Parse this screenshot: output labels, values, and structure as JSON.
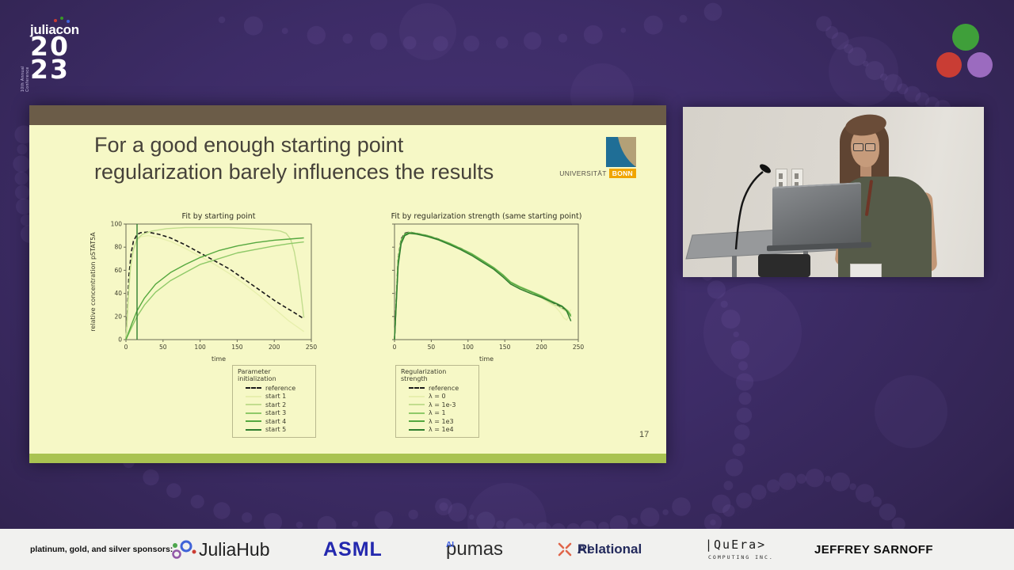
{
  "event": {
    "logo_word": "juliacon",
    "year_top": "20",
    "year_bottom": "23",
    "side_text": "10th Annual Conference"
  },
  "slide": {
    "title_line1": "For a good enough starting point",
    "title_line2": "regularization barely influences the results",
    "page_number": "17",
    "university": {
      "name": "UNIVERSITÄT",
      "city": "BONN"
    }
  },
  "chart_data": [
    {
      "type": "line",
      "title": "Fit by starting point",
      "xlabel": "time",
      "ylabel": "relative concentration pSTAT5A",
      "xlim": [
        0,
        250
      ],
      "ylim": [
        0,
        100
      ],
      "xticks": [
        0,
        50,
        100,
        150,
        200,
        250
      ],
      "yticks": [
        0,
        20,
        40,
        60,
        80,
        100
      ],
      "show_ytick_labels": true,
      "legend_title": "Parameter initialization",
      "legend_position": "below",
      "grid": false,
      "series": [
        {
          "name": "reference",
          "color": "#1a1a1a",
          "dash": true,
          "width": 1.6,
          "points": [
            [
              0,
              0
            ],
            [
              2,
              25
            ],
            [
              4,
              55
            ],
            [
              7,
              75
            ],
            [
              10,
              85
            ],
            [
              15,
              91
            ],
            [
              20,
              92.5
            ],
            [
              30,
              93
            ],
            [
              45,
              91
            ],
            [
              60,
              88
            ],
            [
              80,
              82
            ],
            [
              100,
              75
            ],
            [
              120,
              68
            ],
            [
              140,
              61
            ],
            [
              160,
              52
            ],
            [
              180,
              43
            ],
            [
              200,
              34
            ],
            [
              215,
              28
            ],
            [
              228,
              23
            ],
            [
              240,
              18
            ]
          ]
        },
        {
          "name": "start 1",
          "color": "#e7efad",
          "points": [
            [
              0,
              0
            ],
            [
              2,
              20
            ],
            [
              5,
              55
            ],
            [
              9,
              75
            ],
            [
              14,
              85
            ],
            [
              20,
              89
            ],
            [
              30,
              90
            ],
            [
              45,
              88
            ],
            [
              60,
              85
            ],
            [
              80,
              79
            ],
            [
              100,
              72
            ],
            [
              120,
              65
            ],
            [
              140,
              57
            ],
            [
              160,
              48
            ],
            [
              180,
              38
            ],
            [
              200,
              27
            ],
            [
              220,
              16
            ],
            [
              240,
              7
            ]
          ]
        },
        {
          "name": "start 2",
          "color": "#c2dd8e",
          "points": [
            [
              0,
              0
            ],
            [
              3,
              35
            ],
            [
              6,
              62
            ],
            [
              10,
              78
            ],
            [
              15,
              87
            ],
            [
              22,
              91
            ],
            [
              35,
              94
            ],
            [
              55,
              96
            ],
            [
              80,
              97
            ],
            [
              110,
              97
            ],
            [
              140,
              97
            ],
            [
              170,
              96
            ],
            [
              195,
              95
            ],
            [
              208,
              94
            ],
            [
              216,
              92
            ],
            [
              222,
              87
            ],
            [
              227,
              76
            ],
            [
              232,
              58
            ],
            [
              236,
              40
            ],
            [
              240,
              19
            ]
          ]
        },
        {
          "name": "start 3",
          "color": "#8fc968",
          "points": [
            [
              0,
              0
            ],
            [
              8,
              11
            ],
            [
              15,
              20
            ],
            [
              25,
              30
            ],
            [
              40,
              41
            ],
            [
              60,
              51
            ],
            [
              80,
              58
            ],
            [
              100,
              65
            ],
            [
              125,
              70
            ],
            [
              150,
              75
            ],
            [
              175,
              78
            ],
            [
              200,
              81
            ],
            [
              220,
              83
            ],
            [
              240,
              84.5
            ]
          ]
        },
        {
          "name": "start 4",
          "color": "#55a83f",
          "points": [
            [
              0,
              0
            ],
            [
              8,
              14
            ],
            [
              15,
              25
            ],
            [
              25,
              36
            ],
            [
              40,
              48
            ],
            [
              60,
              58
            ],
            [
              80,
              65
            ],
            [
              100,
              71
            ],
            [
              125,
              77
            ],
            [
              150,
              81
            ],
            [
              175,
              84
            ],
            [
              200,
              86
            ],
            [
              220,
              87
            ],
            [
              240,
              88
            ]
          ]
        },
        {
          "name": "start 5",
          "color": "#2f7d2f",
          "points": [
            [
              15,
              0
            ],
            [
              15,
              100
            ]
          ]
        }
      ]
    },
    {
      "type": "line",
      "title": "Fit by regularization strength (same starting point)",
      "xlabel": "time",
      "ylabel": "",
      "xlim": [
        0,
        250
      ],
      "ylim": [
        0,
        100
      ],
      "xticks": [
        0,
        50,
        100,
        150,
        200,
        250
      ],
      "yticks": [
        0,
        20,
        40,
        60,
        80,
        100
      ],
      "show_ytick_labels": false,
      "legend_title": "Regularization strength",
      "legend_position": "below",
      "grid": false,
      "series": [
        {
          "name": "reference",
          "color": "#1a1a1a",
          "dash": true,
          "width": 1.6,
          "points": [
            [
              0,
              0
            ],
            [
              2,
              30
            ],
            [
              5,
              70
            ],
            [
              9,
              87
            ],
            [
              14,
              92
            ],
            [
              20,
              93
            ],
            [
              30,
              92
            ],
            [
              45,
              90
            ],
            [
              60,
              87
            ],
            [
              75,
              83
            ],
            [
              90,
              79
            ],
            [
              105,
              74
            ],
            [
              120,
              68
            ],
            [
              135,
              62
            ],
            [
              148,
              55
            ],
            [
              158,
              49
            ],
            [
              170,
              45
            ],
            [
              185,
              41
            ],
            [
              200,
              37
            ],
            [
              212,
              33
            ],
            [
              222,
              30
            ],
            [
              230,
              27
            ],
            [
              236,
              24
            ],
            [
              240,
              21
            ]
          ]
        },
        {
          "name": "λ = 0",
          "color": "#e7efad",
          "points": [
            [
              0,
              0
            ],
            [
              2,
              28
            ],
            [
              5,
              68
            ],
            [
              9,
              85
            ],
            [
              14,
              90
            ],
            [
              20,
              91.5
            ],
            [
              30,
              91
            ],
            [
              45,
              89
            ],
            [
              60,
              86
            ],
            [
              75,
              82
            ],
            [
              90,
              78
            ],
            [
              105,
              73
            ],
            [
              120,
              67
            ],
            [
              135,
              61
            ],
            [
              148,
              54
            ],
            [
              158,
              48
            ],
            [
              170,
              44
            ],
            [
              185,
              40
            ],
            [
              200,
              36
            ],
            [
              210,
              32
            ],
            [
              218,
              29
            ],
            [
              225,
              24
            ],
            [
              230,
              19
            ],
            [
              234,
              17
            ],
            [
              237,
              20
            ],
            [
              239,
              25
            ],
            [
              240,
              26
            ]
          ]
        },
        {
          "name": "λ = 1e-3",
          "color": "#c2dd8e",
          "points": [
            [
              0,
              0
            ],
            [
              2,
              29
            ],
            [
              5,
              69
            ],
            [
              9,
              86
            ],
            [
              14,
              91
            ],
            [
              20,
              92.5
            ],
            [
              30,
              91.5
            ],
            [
              45,
              89.5
            ],
            [
              60,
              86.5
            ],
            [
              75,
              82.5
            ],
            [
              90,
              78.5
            ],
            [
              105,
              73.5
            ],
            [
              120,
              67.5
            ],
            [
              135,
              61.5
            ],
            [
              148,
              54.5
            ],
            [
              158,
              48.5
            ],
            [
              170,
              44.5
            ],
            [
              185,
              40.5
            ],
            [
              200,
              36.5
            ],
            [
              212,
              32
            ],
            [
              222,
              29
            ],
            [
              230,
              26
            ],
            [
              236,
              23.5
            ],
            [
              240,
              22
            ]
          ]
        },
        {
          "name": "λ = 1",
          "color": "#8fc968",
          "points": [
            [
              0,
              0
            ],
            [
              2,
              29
            ],
            [
              5,
              69
            ],
            [
              9,
              86
            ],
            [
              14,
              91.5
            ],
            [
              20,
              92.8
            ],
            [
              30,
              92
            ],
            [
              45,
              90
            ],
            [
              60,
              87
            ],
            [
              75,
              83.5
            ],
            [
              90,
              79
            ],
            [
              105,
              74.5
            ],
            [
              120,
              68.5
            ],
            [
              135,
              62.5
            ],
            [
              148,
              56
            ],
            [
              158,
              50
            ],
            [
              170,
              46
            ],
            [
              185,
              42
            ],
            [
              200,
              38
            ],
            [
              212,
              34
            ],
            [
              222,
              31
            ],
            [
              230,
              28
            ],
            [
              236,
              25
            ],
            [
              240,
              21
            ]
          ]
        },
        {
          "name": "λ = 1e3",
          "color": "#55a83f",
          "points": [
            [
              0,
              0
            ],
            [
              2,
              28
            ],
            [
              5,
              67
            ],
            [
              9,
              85
            ],
            [
              14,
              91
            ],
            [
              20,
              92.3
            ],
            [
              30,
              91.8
            ],
            [
              45,
              89.8
            ],
            [
              60,
              86.8
            ],
            [
              75,
              83
            ],
            [
              90,
              78.8
            ],
            [
              105,
              74
            ],
            [
              120,
              68
            ],
            [
              135,
              62
            ],
            [
              148,
              55.5
            ],
            [
              158,
              49.5
            ],
            [
              170,
              45.5
            ],
            [
              185,
              41.5
            ],
            [
              200,
              37.5
            ],
            [
              212,
              33.5
            ],
            [
              222,
              30.5
            ],
            [
              230,
              27.5
            ],
            [
              236,
              24
            ],
            [
              240,
              20
            ]
          ]
        },
        {
          "name": "λ = 1e4",
          "color": "#2f7d2f",
          "points": [
            [
              0,
              0
            ],
            [
              2,
              26
            ],
            [
              5,
              64
            ],
            [
              9,
              83
            ],
            [
              14,
              90
            ],
            [
              20,
              92
            ],
            [
              30,
              91.3
            ],
            [
              45,
              89.2
            ],
            [
              60,
              86.2
            ],
            [
              75,
              82.2
            ],
            [
              90,
              77.8
            ],
            [
              105,
              72.8
            ],
            [
              120,
              66.8
            ],
            [
              135,
              60.8
            ],
            [
              148,
              54
            ],
            [
              158,
              48
            ],
            [
              170,
              44
            ],
            [
              185,
              40
            ],
            [
              200,
              36.5
            ],
            [
              212,
              33
            ],
            [
              220,
              31
            ],
            [
              228,
              29
            ],
            [
              234,
              25
            ],
            [
              240,
              16
            ]
          ]
        }
      ]
    }
  ],
  "sponsors": {
    "label": "platinum, gold, and silver sponsors:",
    "juliahub": "JuliaHub",
    "asml": "ASML",
    "pumas": "pumas",
    "pumas_sup": "AI",
    "relational_bold": "Relational",
    "relational_light": "AI",
    "quera": "|QuEra>",
    "quera_sub": "COMPUTING INC.",
    "jeffrey": "JEFFREY SARNOFF"
  }
}
